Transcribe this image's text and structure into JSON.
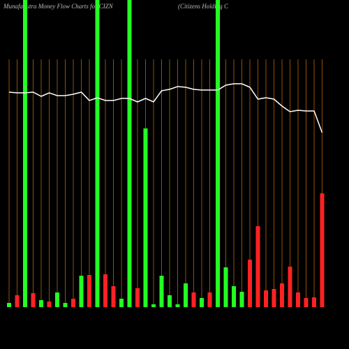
{
  "chart_data": {
    "type": "bar",
    "title": "MunafaSutra  Money Flow  Charts for CIZN",
    "subtitle": "(Citizens Holding C",
    "ylim": [
      0,
      440
    ],
    "highlights": [
      2,
      11,
      15,
      26
    ],
    "highlight_color": "#22ff22",
    "guide_color": "#b8650a",
    "series": [
      {
        "name": "Money Flow",
        "colors": [
          "#22ff22",
          "#ff2222",
          "#22ff22",
          "#ff2222",
          "#22ff22",
          "#ff2222",
          "#22ff22",
          "#22ff22",
          "#ff2222",
          "#22ff22",
          "#ff2222",
          "#22ff22",
          "#ff2222",
          "#ff2222",
          "#22ff22",
          "#22ff22",
          "#ff2222",
          "#22ff22",
          "#22ff22",
          "#22ff22",
          "#22ff22",
          "#22ff22",
          "#22ff22",
          "#ff2222",
          "#22ff22",
          "#ff2222",
          "#22ff22",
          "#22ff22",
          "#22ff22",
          "#22ff22",
          "#ff2222",
          "#ff2222",
          "#ff2222",
          "#ff2222",
          "#ff2222",
          "#ff2222",
          "#ff2222",
          "#ff2222",
          "#ff2222",
          "#ff2222"
        ],
        "values": [
          6,
          17,
          3,
          20,
          10,
          8,
          21,
          6,
          12,
          45,
          46,
          4,
          47,
          30,
          12,
          4,
          27,
          256,
          4,
          45,
          17,
          4,
          34,
          21,
          13,
          21,
          4,
          57,
          30,
          22,
          68,
          116,
          24,
          26,
          34,
          58,
          21,
          13,
          14,
          163
        ]
      },
      {
        "name": "Price",
        "color": "#ffffff",
        "values": [
          308,
          307,
          307,
          308,
          302,
          307,
          303,
          303,
          305,
          308,
          296,
          300,
          296,
          296,
          299,
          299,
          294,
          299,
          294,
          310,
          312,
          316,
          315,
          312,
          311,
          311,
          311,
          318,
          320,
          320,
          315,
          298,
          300,
          298,
          288,
          280,
          282,
          281,
          281,
          250
        ]
      }
    ]
  }
}
